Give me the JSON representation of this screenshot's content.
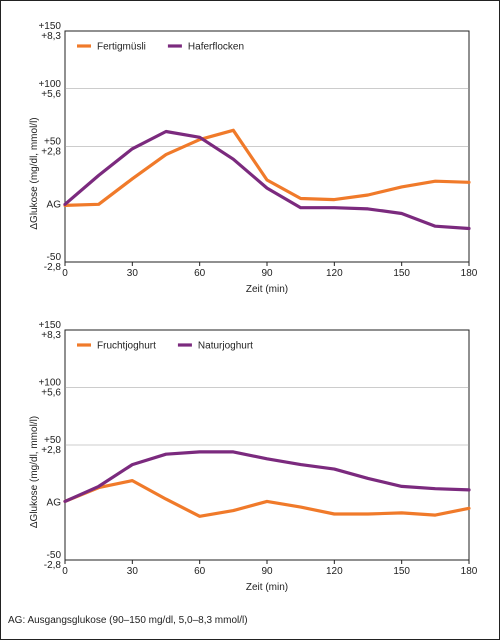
{
  "footnote": "AG: Ausgangsglukose (90–150 mg/dl, 5,0–8,3 mmol/l)",
  "chart_data": [
    {
      "type": "line",
      "x": [
        0,
        15,
        30,
        45,
        60,
        75,
        90,
        105,
        120,
        135,
        150,
        165,
        180
      ],
      "xlabel": "Zeit (min)",
      "ylabel": "ΔGlukose (mg/dl, mmol/l)",
      "xlim": [
        0,
        180
      ],
      "ylim": [
        -50,
        150
      ],
      "xticks": [
        "0",
        "30",
        "60",
        "90",
        "120",
        "150",
        "180"
      ],
      "yticks": [
        {
          "value": 150,
          "top": "+150",
          "bottom": "+8,3"
        },
        {
          "value": 100,
          "top": "+100",
          "bottom": "+5,6"
        },
        {
          "value": 50,
          "top": "+50",
          "bottom": "+2,8"
        },
        {
          "value": 0,
          "top": "AG",
          "bottom": ""
        },
        {
          "value": -50,
          "top": "-50",
          "bottom": "-2,8"
        }
      ],
      "grid_y": [
        50,
        100
      ],
      "legend_position": "top-left",
      "series": [
        {
          "name": "Fertigmüsli",
          "color": "#f07a2a",
          "values": [
            -1,
            0,
            22,
            43,
            56,
            64,
            21,
            5,
            4,
            8,
            15,
            20,
            19
          ]
        },
        {
          "name": "Haferflocken",
          "color": "#7b2a7e",
          "values": [
            0,
            25,
            48,
            63,
            58,
            39,
            14,
            -3,
            -3,
            -4,
            -8,
            -19,
            -21
          ]
        }
      ]
    },
    {
      "type": "line",
      "x": [
        0,
        15,
        30,
        45,
        60,
        75,
        90,
        105,
        120,
        135,
        150,
        165,
        180
      ],
      "xlabel": "Zeit (min)",
      "ylabel": "ΔGlukose (mg/dl, mmol/l)",
      "xlim": [
        0,
        180
      ],
      "ylim": [
        -50,
        150
      ],
      "xticks": [
        "0",
        "30",
        "60",
        "90",
        "120",
        "150",
        "180"
      ],
      "yticks": [
        {
          "value": 150,
          "top": "+150",
          "bottom": "+8,3"
        },
        {
          "value": 100,
          "top": "+100",
          "bottom": "+5,6"
        },
        {
          "value": 50,
          "top": "+50",
          "bottom": "+2,8"
        },
        {
          "value": 0,
          "top": "AG",
          "bottom": ""
        },
        {
          "value": -50,
          "top": "-50",
          "bottom": "-2,8"
        }
      ],
      "grid_y": [
        50,
        100
      ],
      "legend_position": "top-left",
      "series": [
        {
          "name": "Fruchtjoghurt",
          "color": "#f07a2a",
          "values": [
            1,
            13,
            19,
            3,
            -12,
            -7,
            1,
            -4,
            -10,
            -10,
            -9,
            -11,
            -5
          ]
        },
        {
          "name": "Naturjoghurt",
          "color": "#7b2a7e",
          "values": [
            1,
            14,
            33,
            42,
            44,
            44,
            38,
            33,
            29,
            21,
            14,
            12,
            11
          ]
        }
      ]
    }
  ]
}
